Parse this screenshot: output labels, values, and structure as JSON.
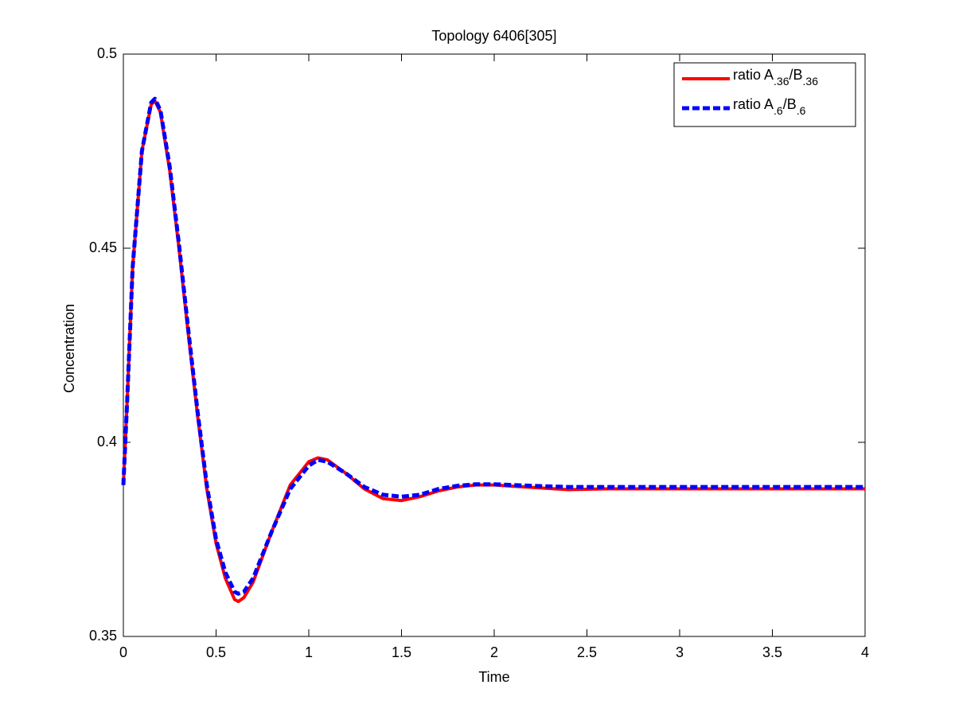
{
  "chart_data": {
    "type": "line",
    "title": "Topology 6406[305]",
    "x_label": "Time",
    "y_label": "Concentration",
    "x": [
      0,
      0.02,
      0.05,
      0.1,
      0.15,
      0.17,
      0.2,
      0.25,
      0.3,
      0.35,
      0.4,
      0.45,
      0.5,
      0.55,
      0.6,
      0.62,
      0.65,
      0.7,
      0.8,
      0.9,
      1.0,
      1.05,
      1.1,
      1.2,
      1.3,
      1.4,
      1.5,
      1.6,
      1.7,
      1.8,
      1.9,
      2.0,
      2.2,
      2.4,
      2.6,
      3,
      3.5,
      4
    ],
    "series": [
      {
        "name": "ratio A.36/B.36",
        "color": "#ff0000",
        "dash": false,
        "values": [
          0.389,
          0.41,
          0.445,
          0.475,
          0.487,
          0.488,
          0.485,
          0.47,
          0.45,
          0.428,
          0.407,
          0.388,
          0.374,
          0.365,
          0.3595,
          0.359,
          0.36,
          0.364,
          0.377,
          0.389,
          0.395,
          0.396,
          0.3955,
          0.392,
          0.388,
          0.3855,
          0.385,
          0.386,
          0.3875,
          0.3885,
          0.389,
          0.389,
          0.3884,
          0.3878,
          0.388,
          0.388,
          0.388,
          0.388
        ]
      },
      {
        "name": "ratio A.6/B.6",
        "color": "#0000ff",
        "dash": true,
        "values": [
          0.389,
          0.41,
          0.445,
          0.475,
          0.4875,
          0.4885,
          0.4855,
          0.471,
          0.451,
          0.429,
          0.408,
          0.389,
          0.375,
          0.3665,
          0.3615,
          0.361,
          0.3615,
          0.365,
          0.377,
          0.388,
          0.394,
          0.3955,
          0.395,
          0.392,
          0.3885,
          0.3865,
          0.386,
          0.3865,
          0.388,
          0.3888,
          0.3892,
          0.3892,
          0.3888,
          0.3885,
          0.3885,
          0.3885,
          0.3885,
          0.3885
        ]
      }
    ],
    "xlim": [
      0,
      4
    ],
    "xticks": [
      0,
      0.5,
      1,
      1.5,
      2,
      2.5,
      3,
      3.5,
      4
    ],
    "ylim": [
      0.35,
      0.5
    ],
    "yticks": [
      0.35,
      0.4,
      0.45,
      0.5
    ],
    "grid": false,
    "legend": "upper right"
  }
}
